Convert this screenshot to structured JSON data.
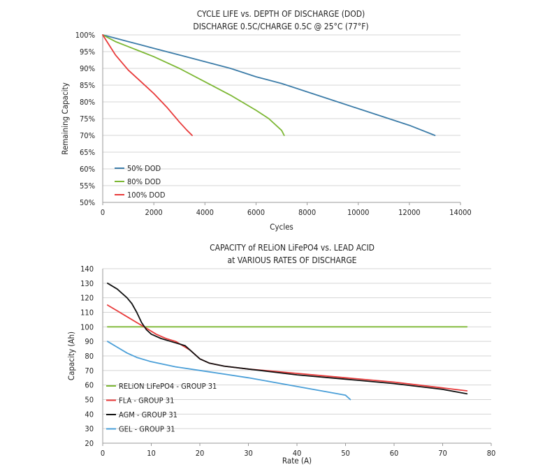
{
  "chart_data": [
    {
      "type": "line",
      "title": "CYCLE LIFE vs. DEPTH OF DISCHARGE (DOD)",
      "subtitle": "DISCHARGE 0.5C/CHARGE 0.5C @ 25°C (77°F)",
      "xlabel": "Cycles",
      "ylabel": "Remaining Capacity",
      "xlim": [
        0,
        14000
      ],
      "ylim": [
        50,
        100
      ],
      "x_ticks": [
        0,
        2000,
        4000,
        6000,
        8000,
        10000,
        12000,
        14000
      ],
      "y_ticks": [
        50,
        55,
        60,
        65,
        70,
        75,
        80,
        85,
        90,
        95,
        100
      ],
      "y_tick_suffix": "%",
      "grid": "horizontal",
      "legend_position": "bottom-left",
      "series": [
        {
          "name": "50% DOD",
          "color": "#3c7ca8",
          "points": [
            [
              0,
              100
            ],
            [
              500,
              99
            ],
            [
              1000,
              98
            ],
            [
              1500,
              97
            ],
            [
              2000,
              96
            ],
            [
              3000,
              94
            ],
            [
              4000,
              92
            ],
            [
              5000,
              90
            ],
            [
              6000,
              87.5
            ],
            [
              7000,
              85.5
            ],
            [
              8000,
              83
            ],
            [
              9000,
              80.5
            ],
            [
              10000,
              78
            ],
            [
              11000,
              75.5
            ],
            [
              12000,
              73
            ],
            [
              13000,
              70
            ]
          ]
        },
        {
          "name": "80% DOD",
          "color": "#7cb733",
          "points": [
            [
              0,
              100
            ],
            [
              500,
              98
            ],
            [
              1000,
              96.5
            ],
            [
              1500,
              95
            ],
            [
              2000,
              93.5
            ],
            [
              3000,
              90
            ],
            [
              4000,
              86
            ],
            [
              5000,
              82
            ],
            [
              6000,
              77.5
            ],
            [
              6500,
              75
            ],
            [
              7000,
              71.5
            ],
            [
              7100,
              70
            ]
          ]
        },
        {
          "name": "100% DOD",
          "color": "#e83a3a",
          "points": [
            [
              0,
              100
            ],
            [
              250,
              97
            ],
            [
              500,
              94
            ],
            [
              1000,
              89.5
            ],
            [
              1500,
              86
            ],
            [
              2000,
              82.5
            ],
            [
              2500,
              78.5
            ],
            [
              3000,
              74
            ],
            [
              3300,
              71.5
            ],
            [
              3500,
              70
            ]
          ]
        }
      ]
    },
    {
      "type": "line",
      "title": "CAPACITY of RELiON LiFePO4 vs. LEAD ACID",
      "subtitle": "at VARIOUS RATES OF DISCHARGE",
      "xlabel": "Rate (A)",
      "ylabel": "Capacity (Ah)",
      "xlim": [
        0,
        80
      ],
      "ylim": [
        20,
        140
      ],
      "x_ticks": [
        0,
        10,
        20,
        30,
        40,
        50,
        60,
        70,
        80
      ],
      "y_ticks": [
        20,
        30,
        40,
        50,
        60,
        70,
        80,
        90,
        100,
        110,
        120,
        130,
        140
      ],
      "y_tick_suffix": "",
      "grid": "horizontal",
      "legend_position": "bottom-left",
      "series": [
        {
          "name": "RELiON LiFePO4 - GROUP 31",
          "color": "#7cb733",
          "points": [
            [
              1,
              100
            ],
            [
              75,
              100
            ]
          ]
        },
        {
          "name": "FLA - GROUP 31",
          "color": "#e83a3a",
          "points": [
            [
              1,
              115
            ],
            [
              3,
              111
            ],
            [
              5,
              107
            ],
            [
              7,
              103
            ],
            [
              9,
              99
            ],
            [
              11,
              95
            ],
            [
              13,
              92
            ],
            [
              15,
              90
            ],
            [
              17,
              86
            ],
            [
              18,
              84
            ],
            [
              20,
              78
            ],
            [
              22,
              75
            ],
            [
              25,
              73
            ],
            [
              30,
              71
            ],
            [
              40,
              68
            ],
            [
              50,
              65
            ],
            [
              60,
              62
            ],
            [
              70,
              58
            ],
            [
              75,
              56
            ]
          ]
        },
        {
          "name": "AGM - GROUP 31",
          "color": "#111111",
          "points": [
            [
              1,
              130
            ],
            [
              3,
              126
            ],
            [
              5,
              120
            ],
            [
              6,
              116
            ],
            [
              7,
              110
            ],
            [
              8,
              103
            ],
            [
              9,
              98
            ],
            [
              10,
              95
            ],
            [
              12,
              92
            ],
            [
              14,
              90
            ],
            [
              16,
              88
            ],
            [
              17,
              87
            ],
            [
              18,
              84
            ],
            [
              20,
              78
            ],
            [
              22,
              75
            ],
            [
              25,
              73
            ],
            [
              30,
              71
            ],
            [
              40,
              67
            ],
            [
              50,
              64
            ],
            [
              60,
              61
            ],
            [
              70,
              57
            ],
            [
              75,
              54
            ]
          ]
        },
        {
          "name": "GEL - GROUP 31",
          "color": "#4a9fd8",
          "points": [
            [
              1,
              90
            ],
            [
              3,
              86
            ],
            [
              5,
              82
            ],
            [
              7,
              79
            ],
            [
              10,
              76
            ],
            [
              15,
              72.5
            ],
            [
              20,
              70
            ],
            [
              25,
              67.5
            ],
            [
              30,
              65
            ],
            [
              35,
              62
            ],
            [
              40,
              59
            ],
            [
              45,
              56
            ],
            [
              50,
              53
            ],
            [
              51,
              50
            ]
          ]
        }
      ]
    }
  ]
}
